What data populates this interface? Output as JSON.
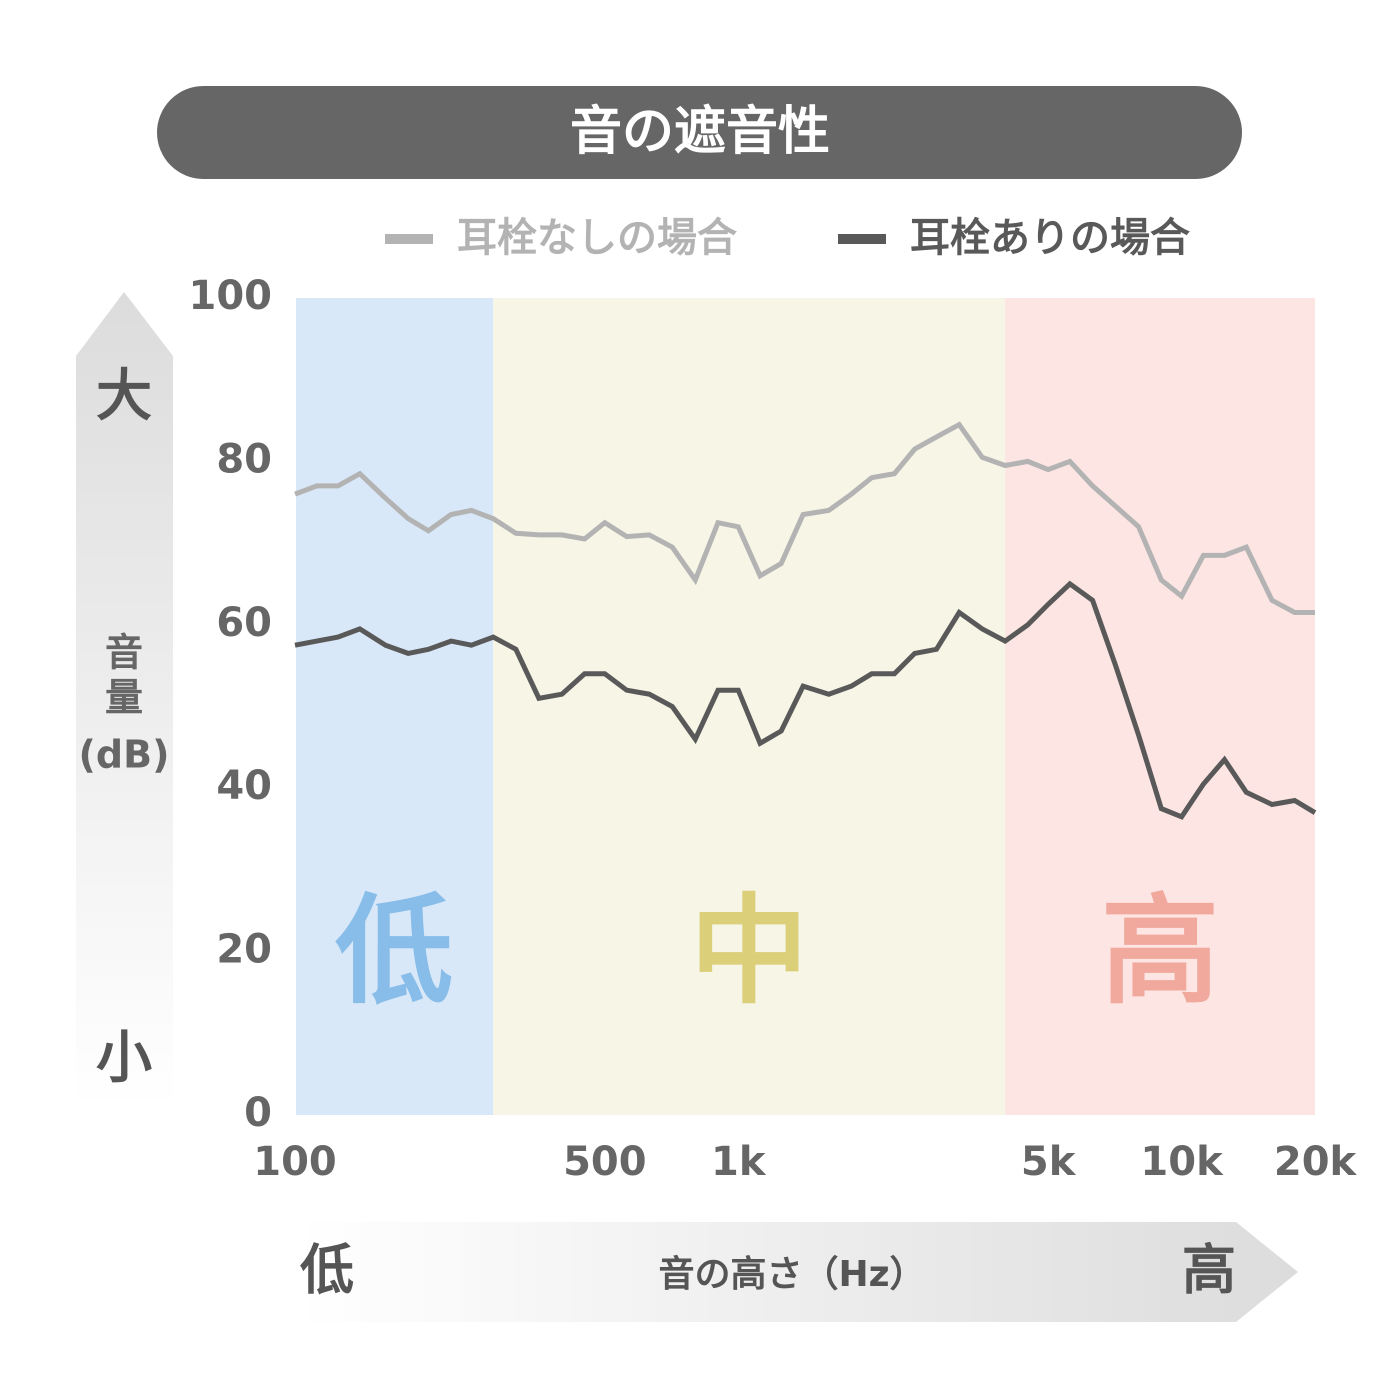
{
  "header": {
    "title": "音の遮音性"
  },
  "legend": [
    {
      "label": "耳栓なしの場合",
      "color": "#b3b3b3"
    },
    {
      "label": "耳栓ありの場合",
      "color": "#595959"
    }
  ],
  "y_arrow": {
    "top_label": "大",
    "bottom_label": "小",
    "name_line1": "音",
    "name_line2": "量",
    "unit": "(dB)"
  },
  "x_arrow": {
    "left_label": "低",
    "right_label": "高",
    "name": "音の高さ（Hz）"
  },
  "bands": [
    {
      "label": "低",
      "from_hz": 100,
      "to_hz": 280,
      "fill": "#d9e8f8",
      "text_color": "#88bde9"
    },
    {
      "label": "中",
      "from_hz": 280,
      "to_hz": 4000,
      "fill": "#f6f5e6",
      "text_color": "#dccf79"
    },
    {
      "label": "高",
      "from_hz": 4000,
      "to_hz": 20000,
      "fill": "#fde5e3",
      "text_color": "#f0a99c"
    }
  ],
  "chart_data": {
    "type": "line",
    "title": "音の遮音性",
    "xlabel": "音の高さ（Hz）",
    "ylabel": "音量(dB)",
    "xscale": "log",
    "xlim": [
      100,
      20000
    ],
    "ylim": [
      0,
      100
    ],
    "yticks": [
      0,
      20,
      40,
      60,
      80,
      100
    ],
    "xticks": [
      {
        "value": 100,
        "label": "100"
      },
      {
        "value": 500,
        "label": "500"
      },
      {
        "value": 1000,
        "label": "1k"
      },
      {
        "value": 5000,
        "label": "5k"
      },
      {
        "value": 10000,
        "label": "10k"
      },
      {
        "value": 20000,
        "label": "20k"
      }
    ],
    "legend_position": "top",
    "x": [
      100,
      112,
      125,
      140,
      160,
      180,
      200,
      225,
      250,
      280,
      315,
      355,
      400,
      450,
      500,
      560,
      630,
      710,
      800,
      900,
      1000,
      1120,
      1250,
      1400,
      1600,
      1800,
      2000,
      2250,
      2500,
      2800,
      3150,
      3550,
      4000,
      4500,
      5000,
      5600,
      6300,
      7100,
      8000,
      9000,
      10000,
      11200,
      12500,
      14000,
      16000,
      18000,
      20000
    ],
    "series": [
      {
        "name": "耳栓なしの場合",
        "color": "#b3b3b3",
        "values": [
          76,
          77,
          77,
          78.5,
          75.5,
          73,
          71.5,
          73.5,
          74,
          73,
          71.2,
          71,
          71,
          70.5,
          72.5,
          70.8,
          71,
          69.5,
          65.5,
          72.5,
          72,
          66,
          67.5,
          73.5,
          74,
          76,
          78,
          78.5,
          81.5,
          83,
          84.5,
          80.5,
          79.5,
          80,
          79,
          80,
          77,
          74.5,
          72,
          65.5,
          63.5,
          68.5,
          68.5,
          69.5,
          63,
          61.5,
          61.5
        ]
      },
      {
        "name": "耳栓ありの場合",
        "color": "#595959",
        "values": [
          57.5,
          58,
          58.5,
          59.5,
          57.5,
          56.5,
          57,
          58,
          57.5,
          58.5,
          57,
          51,
          51.5,
          54,
          54,
          52,
          51.5,
          50,
          46,
          52,
          52,
          45.5,
          47,
          52.5,
          51.5,
          52.5,
          54,
          54,
          56.5,
          57,
          61.5,
          59.5,
          58,
          60,
          62.5,
          65,
          63,
          55,
          46.5,
          37.5,
          36.5,
          40.5,
          43.5,
          39.5,
          38,
          38.5,
          37
        ]
      }
    ]
  }
}
